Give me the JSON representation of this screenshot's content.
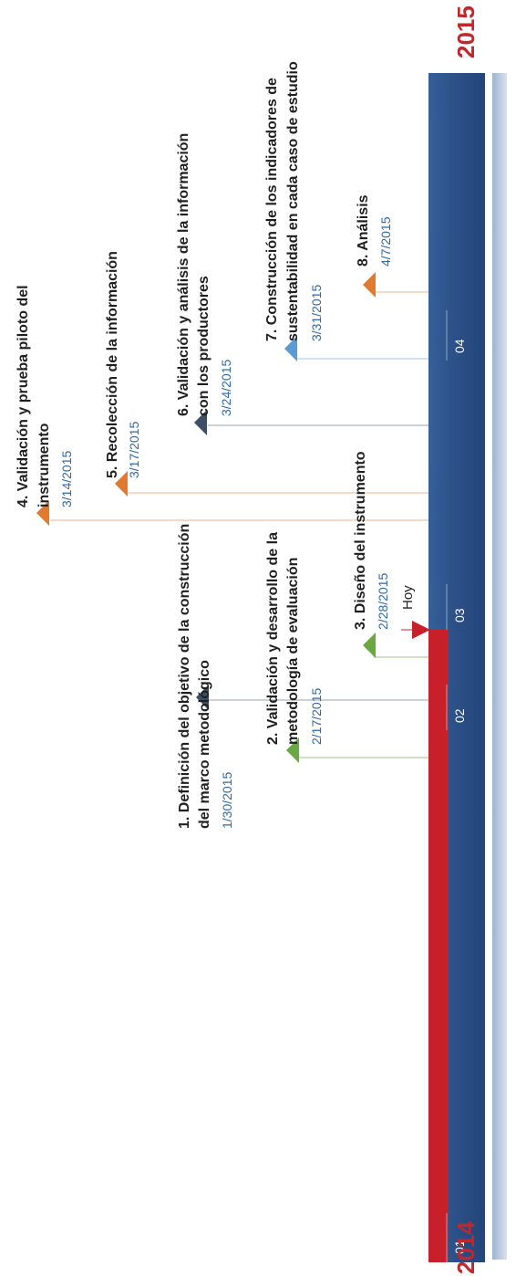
{
  "timeline": {
    "start_year": "2014",
    "end_year": "2015",
    "today_label": "Hoy",
    "quarters": [
      "01",
      "02",
      "03",
      "04"
    ],
    "colors": {
      "bar": "#2b4f86",
      "progress": "#c8202a",
      "year": "#c1272d",
      "date": "#2e6aa8"
    },
    "milestones": [
      {
        "title_lines": [
          "1. Definición del objetivo de la construcción",
          "del marco metodológico"
        ],
        "date": "1/30/2015",
        "color": "#3d4f66"
      },
      {
        "title_lines": [
          "2. Validación y desarrollo de la",
          "metodología de evaluación"
        ],
        "date": "2/17/2015",
        "color": "#6aa842"
      },
      {
        "title_lines": [
          "3. Diseño del instrumento"
        ],
        "date": "2/28/2015",
        "color": "#6aa842"
      },
      {
        "title_lines": [
          "4. Validación y prueba piloto del",
          "instrumento"
        ],
        "date": "3/14/2015",
        "color": "#e07a2f"
      },
      {
        "title_lines": [
          "5. Recolección de la información"
        ],
        "date": "3/17/2015",
        "color": "#e07a2f"
      },
      {
        "title_lines": [
          "6. Validación y análisis de la información",
          "con los productores"
        ],
        "date": "3/24/2015",
        "color": "#3d4f66"
      },
      {
        "title_lines": [
          "7. Construcción de los indicadores de",
          "sustentabilidad en cada caso de estudio"
        ],
        "date": "3/31/2015",
        "color": "#5b9bd5"
      },
      {
        "title_lines": [
          "8. Análisis"
        ],
        "date": "4/7/2015",
        "color": "#e07a2f"
      }
    ]
  }
}
